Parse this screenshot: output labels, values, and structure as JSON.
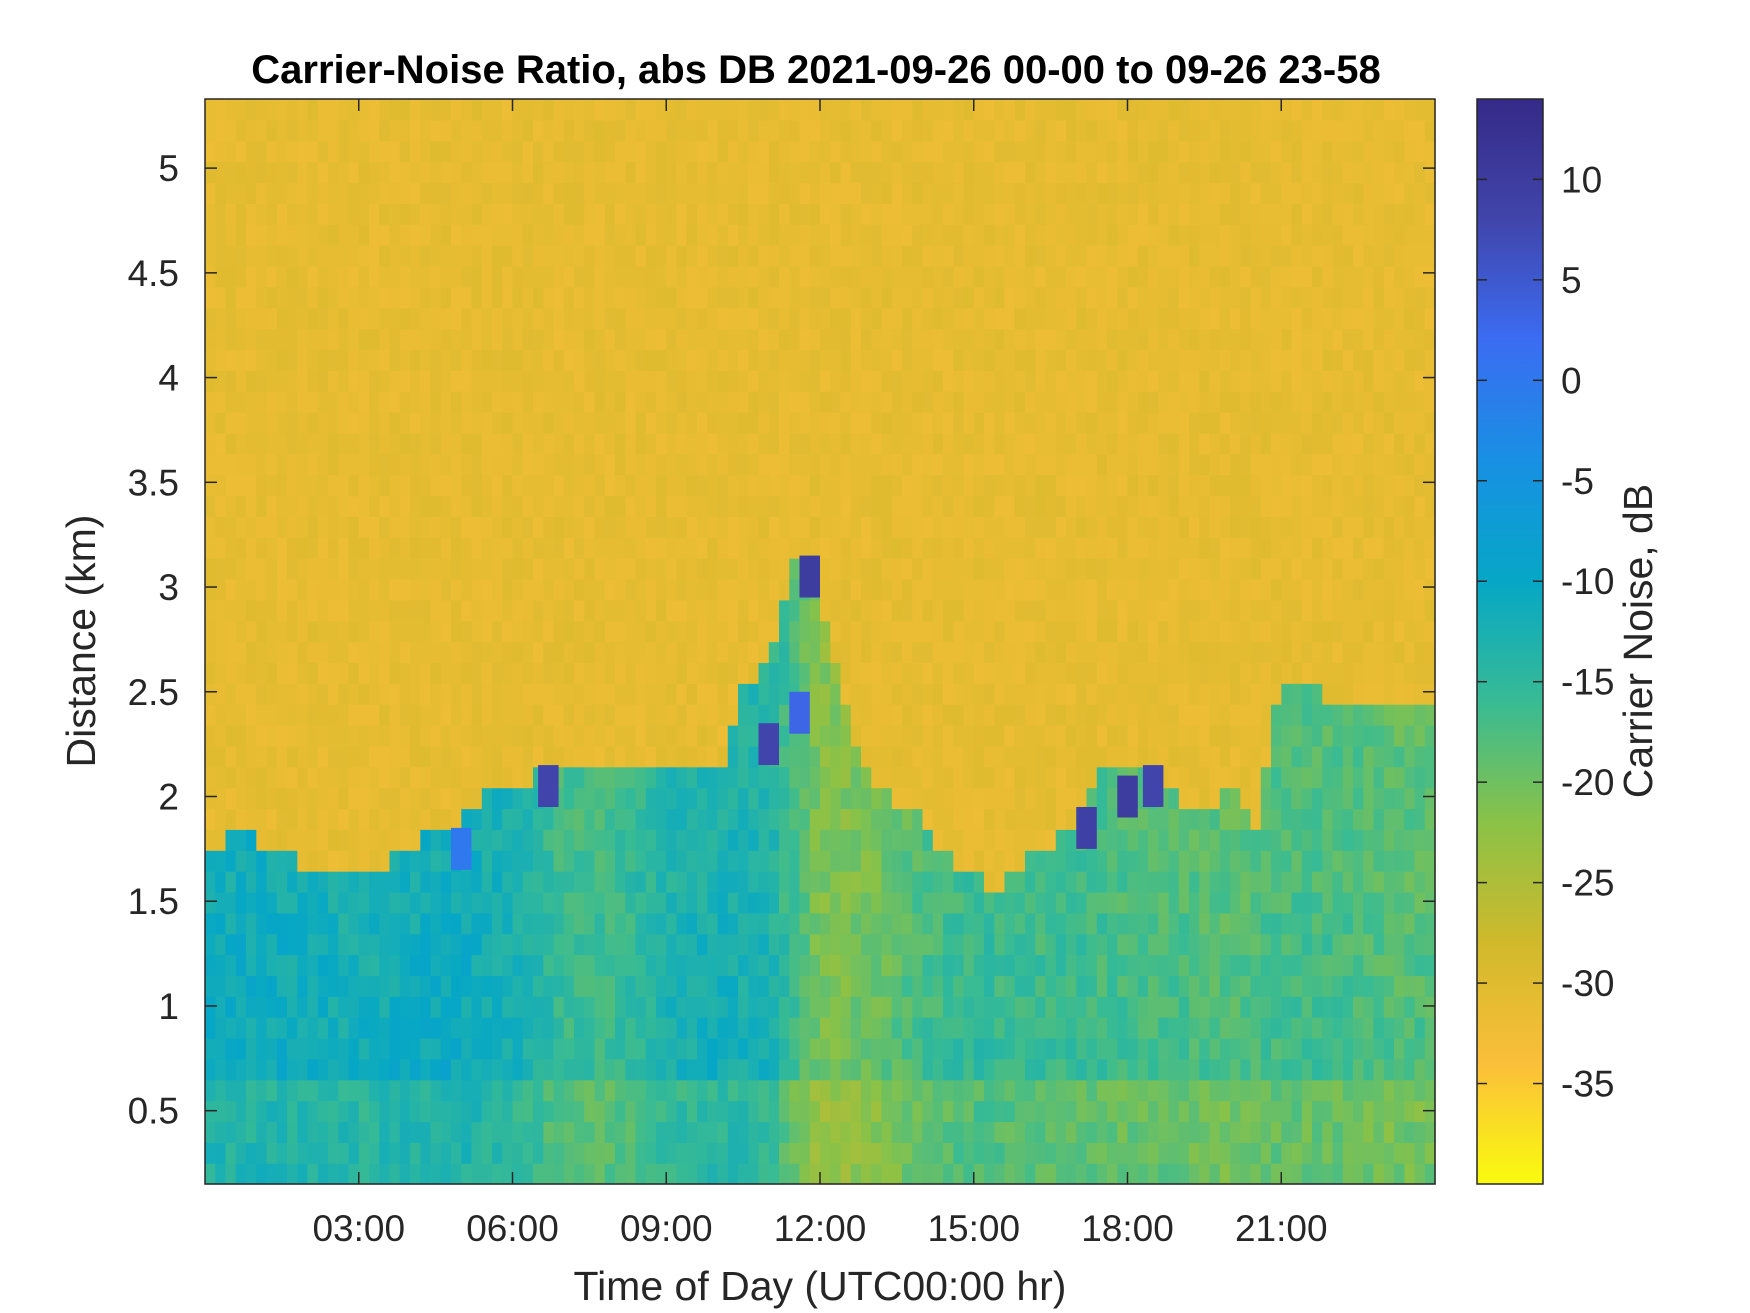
{
  "chart_data": {
    "type": "heatmap",
    "title": "Carrier-Noise Ratio, abs DB 2021-09-26 00-00 to 09-26 23-58",
    "xlabel": "Time of Day (UTC00:00 hr)",
    "ylabel": "Distance (km)",
    "colorbar_label": "Carrier Noise, dB",
    "xlim": [
      0,
      24
    ],
    "ylim": [
      0.15,
      5.33
    ],
    "clim": [
      -40,
      14
    ],
    "x_ticks": [
      3,
      6,
      9,
      12,
      15,
      18,
      21
    ],
    "x_tick_labels": [
      "03:00",
      "06:00",
      "09:00",
      "12:00",
      "15:00",
      "18:00",
      "21:00"
    ],
    "y_ticks": [
      0.5,
      1,
      1.5,
      2,
      2.5,
      3,
      3.5,
      4,
      4.5,
      5
    ],
    "y_tick_labels": [
      "0.5",
      "1",
      "1.5",
      "2",
      "2.5",
      "3",
      "3.5",
      "4",
      "4.5",
      "5"
    ],
    "colorbar_ticks": [
      -35,
      -30,
      -25,
      -20,
      -15,
      -10,
      -5,
      0,
      5,
      10
    ],
    "colorbar_tick_labels": [
      "-35",
      "-30",
      "-25",
      "-20",
      "-15",
      "-10",
      "-5",
      "0",
      "5",
      "10"
    ],
    "colormap": "parula",
    "colormap_stops": [
      "#f9fb0e",
      "#fbbf3a",
      "#d1b92b",
      "#8ac247",
      "#38bb94",
      "#06a7c6",
      "#1890e3",
      "#3b6cf2",
      "#4145ab",
      "#352a87"
    ],
    "background_value_dB": -31,
    "boundary_layer_top_km": {
      "hours": [
        0,
        0.4,
        1,
        1.5,
        2,
        2.5,
        3,
        4,
        4.5,
        5,
        5.5,
        6,
        6.5,
        7,
        8,
        9,
        10,
        10.5,
        11,
        11.5,
        12,
        12.5,
        13,
        14,
        14.5,
        15,
        15.5,
        16,
        16.5,
        17,
        17.5,
        18,
        18.5,
        19,
        19.5,
        20,
        20.5,
        21,
        21.5,
        22,
        23,
        24
      ],
      "km": [
        1.7,
        1.8,
        1.8,
        1.75,
        1.65,
        1.65,
        1.6,
        1.75,
        1.85,
        1.9,
        2.0,
        2.05,
        2.1,
        2.1,
        2.1,
        2.1,
        2.1,
        2.5,
        2.7,
        3.1,
        3.0,
        2.4,
        2.05,
        1.9,
        1.7,
        1.65,
        1.55,
        1.7,
        1.75,
        1.9,
        2.1,
        2.2,
        2.1,
        2.0,
        1.9,
        2.05,
        1.85,
        2.6,
        2.55,
        2.45,
        2.4,
        2.45
      ]
    },
    "layer_mean_dB": {
      "hours": [
        0,
        1,
        2,
        3,
        4,
        5,
        6,
        7,
        8,
        9,
        10,
        11,
        12,
        13,
        14,
        15,
        16,
        17,
        18,
        19,
        20,
        21,
        22,
        23,
        24
      ],
      "dB": [
        -10,
        -10,
        -10,
        -11,
        -10,
        -10,
        -11,
        -15,
        -15,
        -12,
        -11,
        -12,
        -20,
        -19,
        -16,
        -14,
        -15,
        -15,
        -16,
        -16,
        -17,
        -16,
        -16,
        -17,
        -17
      ]
    },
    "strong_echo_patches": [
      {
        "hour": 5.0,
        "km": 1.75,
        "dB": 0
      },
      {
        "hour": 6.7,
        "km": 2.05,
        "dB": 8
      },
      {
        "hour": 11.0,
        "km": 2.25,
        "dB": 8
      },
      {
        "hour": 11.6,
        "km": 2.4,
        "dB": 3
      },
      {
        "hour": 11.8,
        "km": 3.05,
        "dB": 10
      },
      {
        "hour": 17.2,
        "km": 1.85,
        "dB": 9
      },
      {
        "hour": 18.0,
        "km": 2.0,
        "dB": 10
      },
      {
        "hour": 18.5,
        "km": 2.05,
        "dB": 8
      }
    ]
  }
}
